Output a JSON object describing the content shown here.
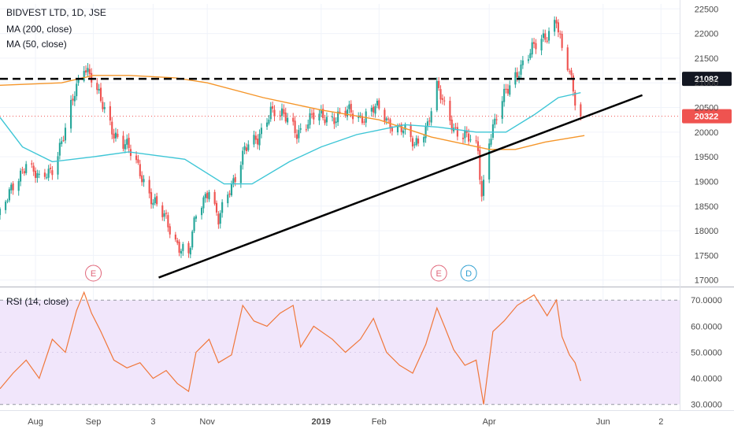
{
  "header": {
    "symbol_line": "BIDVEST LTD, 1D, JSE",
    "ma200_label": "MA (200, close)",
    "ma50_label": "MA (50, close)",
    "rsi_label": "RSI (14, close)"
  },
  "markers": [
    {
      "letter": "E",
      "date": "Sep 1",
      "kind": "earnings",
      "color": "#e0667a"
    },
    {
      "letter": "E",
      "date": "Mar 5",
      "kind": "earnings",
      "color": "#e0667a"
    },
    {
      "letter": "D",
      "date": "Mar 21",
      "kind": "dividend",
      "color": "#2f9fd1"
    }
  ],
  "colors": {
    "up": "#26a69a",
    "down": "#ef5350",
    "ma50": "#3ec6d6",
    "ma200": "#f5962a",
    "rsi_line": "#f0773a",
    "rsi_band": "#f1e6fb",
    "grid": "#f0f3fa",
    "axis_text": "#4a4a4a",
    "price_marker_bg": "#ef5350",
    "level_marker_bg": "#131722"
  },
  "chart_data": [
    {
      "type": "candlestick",
      "title": "BIDVEST LTD, 1D, JSE",
      "x_axis": {
        "type": "date",
        "range": [
          "2018-07-13",
          "2019-07-12"
        ],
        "tick_labels": [
          "Aug",
          "Sep",
          "3",
          "Nov",
          "2019",
          "Feb",
          "Apr",
          "Jun",
          "2"
        ],
        "tick_dates": [
          "2018-08-01",
          "2018-09-01",
          "2018-10-03",
          "2018-11-01",
          "2019-01-01",
          "2019-02-01",
          "2019-04-01",
          "2019-06-01",
          "2019-07-02"
        ]
      },
      "y_axis": {
        "range": [
          16900,
          22600
        ],
        "tick_values": [
          17000,
          17500,
          18000,
          18500,
          19000,
          19500,
          20000,
          20500,
          21000,
          21500,
          22000,
          22500
        ],
        "tick_labels": [
          "17000",
          "17500",
          "18000",
          "18500",
          "19000",
          "19500",
          "20000",
          "20500",
          "21000",
          "21500",
          "22000",
          "22500"
        ]
      },
      "grid": true,
      "price_anchors": [
        [
          "2018-07-13",
          18300
        ],
        [
          "2018-07-20",
          18900
        ],
        [
          "2018-07-27",
          19400
        ],
        [
          "2018-08-03",
          19000
        ],
        [
          "2018-08-10",
          19300
        ],
        [
          "2018-08-17",
          20000
        ],
        [
          "2018-08-22",
          20800
        ],
        [
          "2018-08-27",
          21400
        ],
        [
          "2018-08-31",
          21100
        ],
        [
          "2018-09-05",
          20600
        ],
        [
          "2018-09-12",
          20000
        ],
        [
          "2018-09-19",
          19700
        ],
        [
          "2018-09-26",
          19200
        ],
        [
          "2018-10-03",
          18600
        ],
        [
          "2018-10-10",
          18200
        ],
        [
          "2018-10-15",
          17800
        ],
        [
          "2018-10-22",
          17500
        ],
        [
          "2018-10-26",
          18300
        ],
        [
          "2018-11-02",
          18900
        ],
        [
          "2018-11-07",
          18200
        ],
        [
          "2018-11-14",
          18900
        ],
        [
          "2018-11-21",
          19700
        ],
        [
          "2018-11-28",
          19800
        ],
        [
          "2018-12-05",
          20500
        ],
        [
          "2018-12-12",
          20300
        ],
        [
          "2018-12-19",
          20000
        ],
        [
          "2018-12-27",
          20300
        ],
        [
          "2019-01-07",
          20300
        ],
        [
          "2019-01-15",
          20400
        ],
        [
          "2019-01-22",
          20300
        ],
        [
          "2019-01-30",
          20500
        ],
        [
          "2019-02-06",
          20200
        ],
        [
          "2019-02-13",
          20100
        ],
        [
          "2019-02-20",
          19700
        ],
        [
          "2019-02-27",
          20200
        ],
        [
          "2019-03-04",
          20900
        ],
        [
          "2019-03-08",
          20500
        ],
        [
          "2019-03-13",
          20100
        ],
        [
          "2019-03-20",
          19900
        ],
        [
          "2019-03-26",
          19600
        ],
        [
          "2019-03-28",
          18700
        ],
        [
          "2019-04-01",
          19900
        ],
        [
          "2019-04-05",
          20300
        ],
        [
          "2019-04-10",
          20800
        ],
        [
          "2019-04-17",
          21300
        ],
        [
          "2019-04-25",
          21700
        ],
        [
          "2019-05-02",
          22000
        ],
        [
          "2019-05-07",
          22300
        ],
        [
          "2019-05-10",
          21600
        ],
        [
          "2019-05-14",
          21200
        ],
        [
          "2019-05-17",
          20700
        ],
        [
          "2019-05-20",
          20322
        ]
      ],
      "series": [
        {
          "name": "MA (200, close)",
          "points": [
            [
              "2018-07-13",
              20950
            ],
            [
              "2018-08-15",
              21000
            ],
            [
              "2018-09-01",
              21150
            ],
            [
              "2018-09-20",
              21150
            ],
            [
              "2018-10-15",
              21100
            ],
            [
              "2018-11-01",
              21000
            ],
            [
              "2018-12-01",
              20700
            ],
            [
              "2019-01-01",
              20450
            ],
            [
              "2019-02-01",
              20250
            ],
            [
              "2019-03-01",
              19900
            ],
            [
              "2019-04-01",
              19650
            ],
            [
              "2019-04-15",
              19650
            ],
            [
              "2019-05-01",
              19800
            ],
            [
              "2019-05-22",
              19930
            ]
          ]
        },
        {
          "name": "MA (50, close)",
          "points": [
            [
              "2018-07-13",
              20300
            ],
            [
              "2018-07-25",
              19700
            ],
            [
              "2018-08-10",
              19400
            ],
            [
              "2018-09-01",
              19500
            ],
            [
              "2018-09-20",
              19600
            ],
            [
              "2018-10-20",
              19450
            ],
            [
              "2018-11-10",
              18950
            ],
            [
              "2018-11-25",
              18950
            ],
            [
              "2018-12-15",
              19400
            ],
            [
              "2019-01-01",
              19700
            ],
            [
              "2019-01-20",
              19950
            ],
            [
              "2019-02-15",
              20150
            ],
            [
              "2019-03-05",
              20100
            ],
            [
              "2019-03-25",
              20000
            ],
            [
              "2019-04-10",
              20000
            ],
            [
              "2019-04-25",
              20350
            ],
            [
              "2019-05-08",
              20700
            ],
            [
              "2019-05-20",
              20800
            ]
          ]
        }
      ],
      "horizontal_levels": [
        {
          "value": 21082,
          "label": "21082",
          "style": "dashed",
          "color": "#000000"
        },
        {
          "value": 20322,
          "label": "20322",
          "style": "dotted",
          "color": "#ef5350",
          "kind": "last_price"
        }
      ],
      "trendline": {
        "from": [
          "2018-10-06",
          17050
        ],
        "to": [
          "2019-06-22",
          20750
        ],
        "color": "#000000"
      }
    },
    {
      "type": "line",
      "title": "RSI (14, close)",
      "x_axis": {
        "type": "date",
        "range": [
          "2018-07-13",
          "2019-07-12"
        ]
      },
      "y_axis": {
        "range": [
          29,
          74
        ],
        "tick_values": [
          30,
          40,
          50,
          60,
          70
        ],
        "tick_labels": [
          "30.0000",
          "40.0000",
          "50.0000",
          "60.0000",
          "70.0000"
        ]
      },
      "band": [
        30,
        70
      ],
      "series": [
        {
          "name": "RSI (14, close)",
          "points": [
            [
              "2018-07-13",
              36
            ],
            [
              "2018-07-20",
              42
            ],
            [
              "2018-07-27",
              47
            ],
            [
              "2018-08-03",
              40
            ],
            [
              "2018-08-10",
              55
            ],
            [
              "2018-08-17",
              50
            ],
            [
              "2018-08-23",
              66
            ],
            [
              "2018-08-27",
              73
            ],
            [
              "2018-08-31",
              65
            ],
            [
              "2018-09-05",
              58
            ],
            [
              "2018-09-12",
              47
            ],
            [
              "2018-09-19",
              44
            ],
            [
              "2018-09-26",
              46
            ],
            [
              "2018-10-03",
              40
            ],
            [
              "2018-10-10",
              43
            ],
            [
              "2018-10-16",
              38
            ],
            [
              "2018-10-22",
              35
            ],
            [
              "2018-10-26",
              50
            ],
            [
              "2018-11-02",
              55
            ],
            [
              "2018-11-07",
              46
            ],
            [
              "2018-11-14",
              49
            ],
            [
              "2018-11-20",
              68
            ],
            [
              "2018-11-26",
              62
            ],
            [
              "2018-12-03",
              60
            ],
            [
              "2018-12-10",
              65
            ],
            [
              "2018-12-17",
              68
            ],
            [
              "2018-12-21",
              52
            ],
            [
              "2018-12-28",
              60
            ],
            [
              "2019-01-07",
              55
            ],
            [
              "2019-01-14",
              50
            ],
            [
              "2019-01-22",
              55
            ],
            [
              "2019-01-29",
              63
            ],
            [
              "2019-02-05",
              50
            ],
            [
              "2019-02-12",
              45
            ],
            [
              "2019-02-19",
              42
            ],
            [
              "2019-02-26",
              53
            ],
            [
              "2019-03-04",
              67
            ],
            [
              "2019-03-08",
              60
            ],
            [
              "2019-03-13",
              51
            ],
            [
              "2019-03-19",
              45
            ],
            [
              "2019-03-25",
              47
            ],
            [
              "2019-03-29",
              30
            ],
            [
              "2019-04-03",
              58
            ],
            [
              "2019-04-09",
              62
            ],
            [
              "2019-04-16",
              68
            ],
            [
              "2019-04-25",
              72
            ],
            [
              "2019-05-02",
              64
            ],
            [
              "2019-05-07",
              70
            ],
            [
              "2019-05-10",
              56
            ],
            [
              "2019-05-14",
              49
            ],
            [
              "2019-05-17",
              46
            ],
            [
              "2019-05-20",
              39
            ]
          ]
        }
      ]
    }
  ]
}
